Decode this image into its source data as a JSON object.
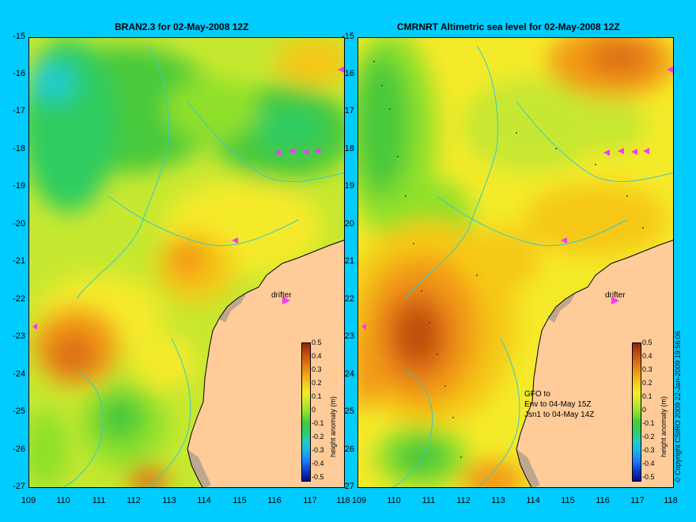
{
  "panels": [
    {
      "title": "BRAN2.3 for 02-May-2008 12Z",
      "drifter_label": "drifter",
      "colorbar_title": "height anomaly (m)",
      "track_text": []
    },
    {
      "title": "CMRNRT Altimetric sea level  for 02-May-2008 12Z",
      "drifter_label": "drifter",
      "colorbar_title": "height anomaly (m)",
      "track_text": [
        "GFO to",
        "Env to 04-May 15Z",
        "Jsn1 to 04-May 14Z"
      ]
    }
  ],
  "axes": {
    "y_ticks": [
      "-15",
      "-16",
      "-17",
      "-18",
      "-19",
      "-20",
      "-21",
      "-22",
      "-23",
      "-24",
      "-25",
      "-26",
      "-27"
    ],
    "x_ticks": [
      "109",
      "110",
      "111",
      "112",
      "113",
      "114",
      "115",
      "116",
      "117",
      "118"
    ]
  },
  "colorbar": {
    "ticks": [
      "0.5",
      "0.4",
      "0.3",
      "0.2",
      "0.1",
      "0",
      "-0.1",
      "-0.2",
      "-0.3",
      "-0.4",
      "-0.5"
    ],
    "colors": [
      "#0b0b7a",
      "#0a3cc8",
      "#1f78ff",
      "#19b3e6",
      "#22cccc",
      "#2ecc60",
      "#48c93a",
      "#8fe02c",
      "#c7e830",
      "#f5ea2a",
      "#f5c818",
      "#f29a14",
      "#dc7014",
      "#be4c10",
      "#8e240a"
    ]
  },
  "copyright": "© Copyright CSIRO 2009   22-Jan-2009 19:56:06",
  "colors": {
    "background": "#00ccff",
    "land": "#ffcc99",
    "shelf": "#bfa78d",
    "coast_contour": "#33cccc",
    "drifter": "#ff33ff"
  }
}
